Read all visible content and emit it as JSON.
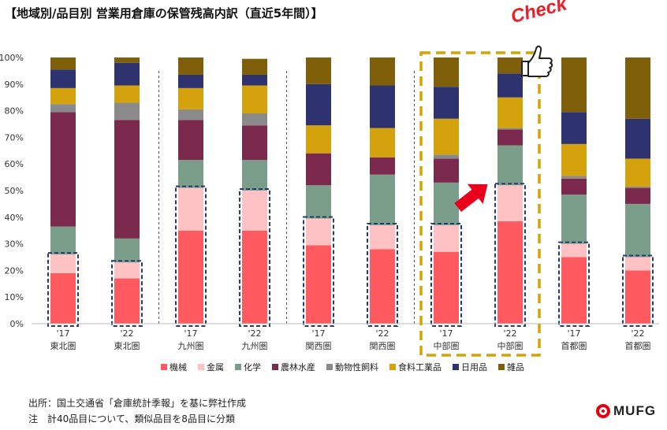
{
  "title": "【地域別/品目別 営業用倉庫の保管残高内訳（直近5年間）】",
  "annotation": {
    "check": "Check",
    "arrow_color": "#e8001c",
    "highlight_color": "#d4a400"
  },
  "notes": {
    "source": "出所：国土交通省「倉庫統計季報」を基に弊社作成",
    "note": "注　計40品目について、類似品目を8品目に分類"
  },
  "logo": {
    "text": "MUFG",
    "color": "#e60012"
  },
  "chart_data": {
    "type": "bar",
    "stacked": true,
    "ylim": [
      0,
      100
    ],
    "y_ticks": [
      "0%",
      "10%",
      "20%",
      "30%",
      "40%",
      "50%",
      "60%",
      "70%",
      "80%",
      "90%",
      "100%"
    ],
    "grid": false,
    "legend_position": "bottom",
    "categories": [
      {
        "year": "'17",
        "region": "東北圏"
      },
      {
        "year": "'22",
        "region": "東北圏"
      },
      {
        "year": "'17",
        "region": "九州圏"
      },
      {
        "year": "'22",
        "region": "九州圏"
      },
      {
        "year": "'17",
        "region": "関西圏"
      },
      {
        "year": "'22",
        "region": "関西圏"
      },
      {
        "year": "'17",
        "region": "中部圏"
      },
      {
        "year": "'22",
        "region": "中部圏"
      },
      {
        "year": "'17",
        "region": "首都圏"
      },
      {
        "year": "'22",
        "region": "首都圏"
      }
    ],
    "series": [
      {
        "name": "機械",
        "color": "#ff5a5f",
        "values": [
          19,
          17,
          35,
          35,
          29.5,
          28,
          27,
          38.5,
          25,
          20
        ]
      },
      {
        "name": "金属",
        "color": "#ffc2c4",
        "values": [
          7,
          6,
          16,
          15,
          10,
          9,
          10,
          13.5,
          5,
          5
        ]
      },
      {
        "name": "化学",
        "color": "#7a9e8a",
        "values": [
          10.5,
          9,
          10.5,
          11.5,
          12.5,
          19,
          16,
          15,
          18.5,
          20
        ]
      },
      {
        "name": "農林水産",
        "color": "#7b2a4e",
        "values": [
          43,
          44.5,
          15,
          13,
          12,
          6.5,
          9,
          6,
          6,
          6
        ]
      },
      {
        "name": "動物性飼料",
        "color": "#8a8a8a",
        "values": [
          3,
          6.5,
          4,
          4.5,
          0,
          0,
          1.5,
          0.5,
          1,
          0.5
        ]
      },
      {
        "name": "食料工業品",
        "color": "#d4a20c",
        "values": [
          6,
          6.5,
          8,
          10.5,
          10.5,
          11,
          13.5,
          11.5,
          12,
          10.5
        ]
      },
      {
        "name": "日用品",
        "color": "#2e3370",
        "values": [
          7,
          8.5,
          5,
          4,
          15.5,
          16,
          12,
          9,
          12,
          15
        ]
      },
      {
        "name": "雑品",
        "color": "#7f5f0a",
        "values": [
          4.5,
          2,
          6.5,
          6,
          10,
          10.5,
          11,
          6,
          20.5,
          23
        ]
      }
    ],
    "emphasized": "機械 + 金属",
    "highlighted_categories": [
      "'17 中部圏",
      "'22 中部圏"
    ]
  }
}
